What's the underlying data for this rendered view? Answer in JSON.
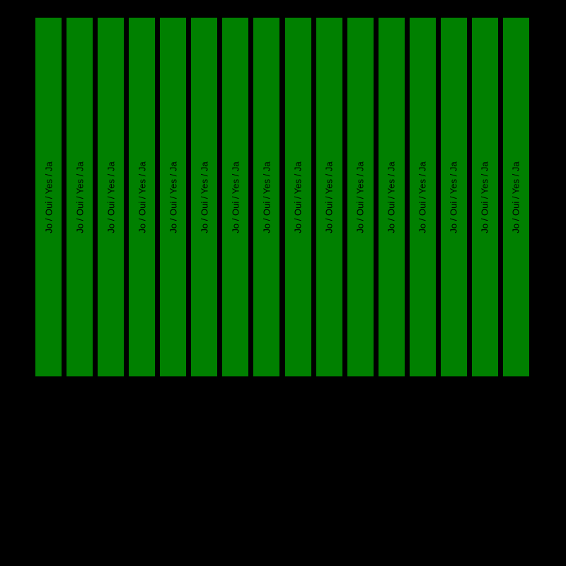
{
  "chart_data": {
    "type": "bar",
    "title": "",
    "xlabel": "",
    "ylabel": "",
    "grid": false,
    "legend": false,
    "background_color": "#000000",
    "bar_color": "#008000",
    "bar_label_color": "#000000",
    "ylim": [
      0,
      1
    ],
    "categories": [
      "",
      "",
      "",
      "",
      "",
      "",
      "",
      "",
      "",
      "",
      "",
      "",
      "",
      "",
      "",
      ""
    ],
    "values": [
      1,
      1,
      1,
      1,
      1,
      1,
      1,
      1,
      1,
      1,
      1,
      1,
      1,
      1,
      1,
      1
    ],
    "bars": [
      {
        "label": "Jo / Oui / Yes / Ja",
        "value": 1
      },
      {
        "label": "Jo / Oui / Yes / Ja",
        "value": 1
      },
      {
        "label": "Jo / Oui / Yes / Ja",
        "value": 1
      },
      {
        "label": "Jo / Oui / Yes / Ja",
        "value": 1
      },
      {
        "label": "Jo / Oui / Yes / Ja",
        "value": 1
      },
      {
        "label": "Jo / Oui / Yes / Ja",
        "value": 1
      },
      {
        "label": "Jo / Oui / Yes / Ja",
        "value": 1
      },
      {
        "label": "Jo / Oui / Yes / Ja",
        "value": 1
      },
      {
        "label": "Jo / Oui / Yes / Ja",
        "value": 1
      },
      {
        "label": "Jo / Oui / Yes / Ja",
        "value": 1
      },
      {
        "label": "Jo / Oui / Yes / Ja",
        "value": 1
      },
      {
        "label": "Jo / Oui / Yes / Ja",
        "value": 1
      },
      {
        "label": "Jo / Oui / Yes / Ja",
        "value": 1
      },
      {
        "label": "Jo / Oui / Yes / Ja",
        "value": 1
      },
      {
        "label": "Jo / Oui / Yes / Ja",
        "value": 1
      },
      {
        "label": "Jo / Oui / Yes / Ja",
        "value": 1
      }
    ]
  }
}
